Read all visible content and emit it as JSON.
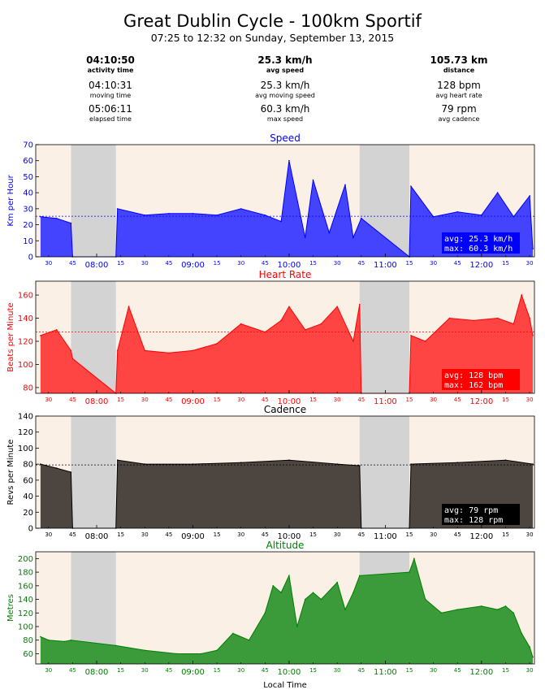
{
  "header": {
    "title": "Great Dublin Cycle - 100km Sportif",
    "subtitle": "07:25 to 12:32 on Sunday, September 13, 2015"
  },
  "stats": [
    {
      "main": "04:10:50",
      "main_label": "activity time",
      "rows": [
        {
          "value": "04:10:31",
          "label": "moving time"
        },
        {
          "value": "05:06:11",
          "label": "elapsed time"
        }
      ]
    },
    {
      "main": "25.3 km/h",
      "main_label": "avg speed",
      "rows": [
        {
          "value": "25.3 km/h",
          "label": "avg moving speed"
        },
        {
          "value": "60.3 km/h",
          "label": "max speed"
        }
      ]
    },
    {
      "main": "105.73 km",
      "main_label": "distance",
      "rows": [
        {
          "value": "128 bpm",
          "label": "avg heart rate"
        },
        {
          "value": "79 rpm",
          "label": "avg cadence"
        }
      ]
    }
  ],
  "colors": {
    "plot_bg": "#faf0e6",
    "pause": "#d3d3d3",
    "speed": "#0000ff",
    "heart": "#ff0000",
    "cadence": "#000000",
    "altitude": "#008000"
  },
  "x_axis": {
    "label": "Local Time",
    "minor_ticks": [
      "30",
      "45",
      "15",
      "30",
      "45",
      "15",
      "30",
      "45",
      "15",
      "30",
      "45",
      "15",
      "30",
      "45",
      "15",
      "30"
    ],
    "major_ticks": [
      "08:00",
      "09:00",
      "10:00",
      "11:00",
      "12:00"
    ]
  },
  "chart_data": [
    {
      "type": "area",
      "title": "Speed",
      "ylabel": "Km per Hour",
      "ylim": [
        0,
        70
      ],
      "yticks": [
        "0",
        "10",
        "20",
        "30",
        "40",
        "50",
        "60",
        "70"
      ],
      "x": [
        "07:25",
        "07:35",
        "07:44",
        "07:45",
        "08:12",
        "08:13",
        "08:30",
        "08:45",
        "09:00",
        "09:15",
        "09:30",
        "09:45",
        "09:55",
        "10:00",
        "10:10",
        "10:15",
        "10:25",
        "10:35",
        "10:40",
        "10:45",
        "11:15",
        "11:16",
        "11:30",
        "11:45",
        "12:00",
        "12:10",
        "12:20",
        "12:30",
        "12:32"
      ],
      "values": [
        25,
        24,
        21,
        0,
        0,
        30,
        26,
        27,
        27,
        26,
        30,
        26,
        22,
        60,
        12,
        48,
        15,
        45,
        12,
        24,
        0,
        44,
        25,
        28,
        26,
        40,
        25,
        38,
        5
      ],
      "avg": 25.3,
      "pauses": [
        [
          "07:44",
          "08:12"
        ],
        [
          "10:44",
          "11:15"
        ]
      ],
      "annotation": [
        "avg:  25.3 km/h",
        "max:  60.3 km/h"
      ],
      "annotation_bg": "#0000ff"
    },
    {
      "type": "area",
      "title": "Heart Rate",
      "ylabel": "Beats per Minute",
      "ylim": [
        75,
        172
      ],
      "yticks": [
        "80",
        "100",
        "120",
        "140",
        "160"
      ],
      "x": [
        "07:25",
        "07:35",
        "07:44",
        "07:45",
        "08:12",
        "08:13",
        "08:20",
        "08:30",
        "08:45",
        "09:00",
        "09:15",
        "09:30",
        "09:45",
        "09:55",
        "10:00",
        "10:10",
        "10:20",
        "10:30",
        "10:40",
        "10:44",
        "10:45",
        "11:15",
        "11:16",
        "11:25",
        "11:40",
        "11:55",
        "12:10",
        "12:20",
        "12:25",
        "12:30",
        "12:32"
      ],
      "values": [
        125,
        130,
        112,
        105,
        75,
        112,
        150,
        112,
        110,
        112,
        118,
        135,
        128,
        138,
        150,
        130,
        135,
        150,
        120,
        152,
        75,
        75,
        125,
        120,
        140,
        138,
        140,
        135,
        160,
        140,
        125
      ],
      "avg": 128,
      "pauses": [
        [
          "07:44",
          "08:12"
        ],
        [
          "10:44",
          "11:15"
        ]
      ],
      "annotation": [
        "avg:  128 bpm",
        "max:  162 bpm"
      ],
      "annotation_bg": "#ff0000"
    },
    {
      "type": "area",
      "title": "Cadence",
      "ylabel": "Revs per Minute",
      "ylim": [
        0,
        140
      ],
      "yticks": [
        "0",
        "20",
        "40",
        "60",
        "80",
        "100",
        "120",
        "140"
      ],
      "x": [
        "07:25",
        "07:35",
        "07:44",
        "07:45",
        "08:12",
        "08:13",
        "08:30",
        "09:00",
        "09:30",
        "10:00",
        "10:30",
        "10:44",
        "10:45",
        "11:15",
        "11:16",
        "11:45",
        "12:15",
        "12:32"
      ],
      "values": [
        80,
        75,
        70,
        0,
        0,
        85,
        80,
        80,
        82,
        85,
        80,
        78,
        0,
        0,
        80,
        82,
        85,
        80
      ],
      "avg": 79,
      "pauses": [
        [
          "07:44",
          "08:12"
        ],
        [
          "10:44",
          "11:15"
        ]
      ],
      "annotation": [
        "avg:  79 rpm",
        "max:  128 rpm"
      ],
      "annotation_bg": "#000000"
    },
    {
      "type": "area",
      "title": "Altitude",
      "ylabel": "Metres",
      "ylim": [
        45,
        210
      ],
      "yticks": [
        "60",
        "80",
        "100",
        "120",
        "140",
        "160",
        "180",
        "200"
      ],
      "x": [
        "07:25",
        "07:30",
        "07:40",
        "07:44",
        "08:12",
        "08:30",
        "08:50",
        "09:05",
        "09:15",
        "09:25",
        "09:35",
        "09:45",
        "09:50",
        "09:55",
        "10:00",
        "10:05",
        "10:10",
        "10:15",
        "10:20",
        "10:30",
        "10:35",
        "10:40",
        "10:44",
        "11:15",
        "11:18",
        "11:25",
        "11:35",
        "11:45",
        "12:00",
        "12:10",
        "12:15",
        "12:20",
        "12:25",
        "12:30",
        "12:32"
      ],
      "values": [
        85,
        80,
        78,
        80,
        72,
        65,
        60,
        60,
        65,
        90,
        80,
        120,
        160,
        150,
        175,
        100,
        140,
        150,
        140,
        165,
        125,
        150,
        175,
        180,
        200,
        140,
        120,
        125,
        130,
        125,
        130,
        120,
        90,
        70,
        55
      ],
      "pauses": [
        [
          "07:44",
          "08:12"
        ],
        [
          "10:44",
          "11:15"
        ]
      ]
    }
  ]
}
